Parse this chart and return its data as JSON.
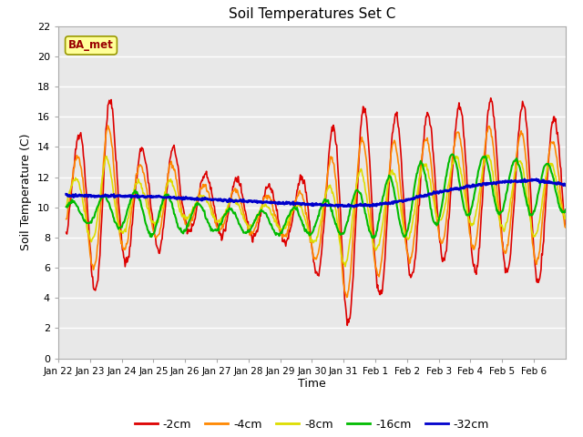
{
  "title": "Soil Temperatures Set C",
  "xlabel": "Time",
  "ylabel": "Soil Temperature (C)",
  "ylim": [
    0,
    22
  ],
  "yticks": [
    0,
    2,
    4,
    6,
    8,
    10,
    12,
    14,
    16,
    18,
    20,
    22
  ],
  "fig_bg_color": "#ffffff",
  "plot_bg_color": "#e8e8e8",
  "annotation_text": "BA_met",
  "annotation_color": "#990000",
  "annotation_bg": "#ffff99",
  "annotation_border": "#999900",
  "legend_entries": [
    "-2cm",
    "-4cm",
    "-8cm",
    "-16cm",
    "-32cm"
  ],
  "line_colors": [
    "#dd0000",
    "#ff8800",
    "#dddd00",
    "#00bb00",
    "#0000cc"
  ],
  "line_widths": [
    1.2,
    1.2,
    1.2,
    1.5,
    2.0
  ],
  "x_tick_labels": [
    "Jan 22",
    "Jan 23",
    "Jan 24",
    "Jan 25",
    "Jan 26",
    "Jan 27",
    "Jan 28",
    "Jan 29",
    "Jan 30",
    "Jan 31",
    "Feb 1",
    "Feb 2",
    "Feb 3",
    "Feb 4",
    "Feb 5",
    "Feb 6"
  ],
  "n_days": 16
}
